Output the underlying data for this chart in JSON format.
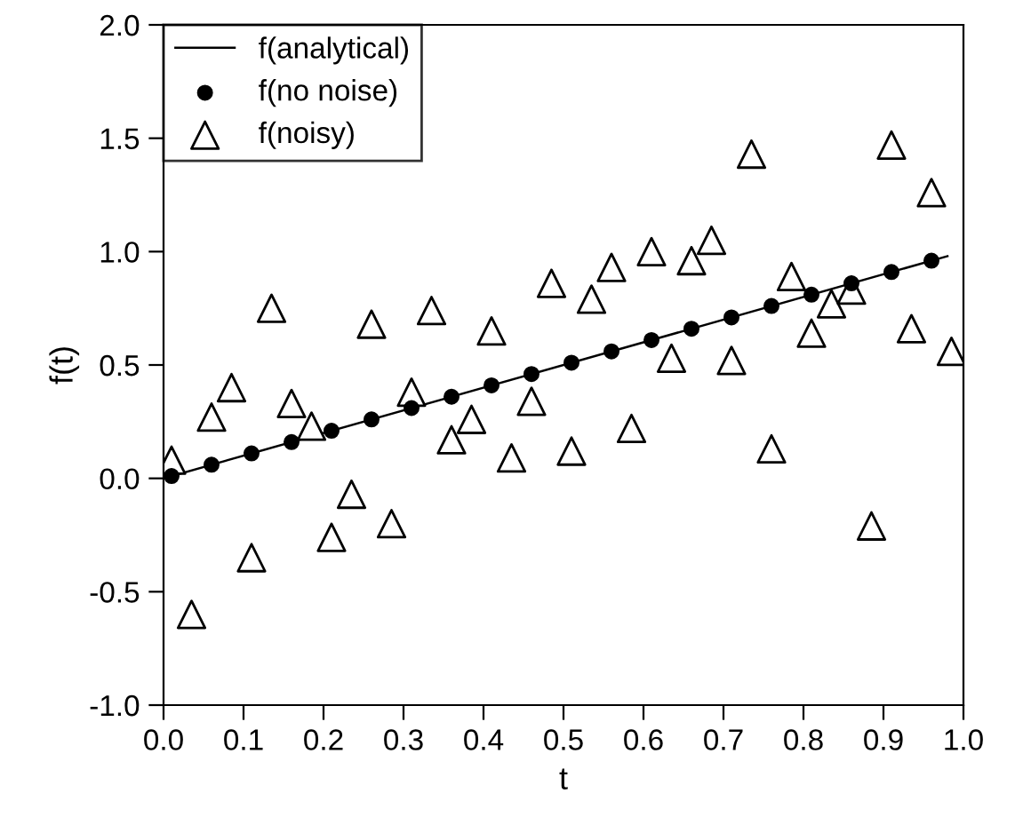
{
  "chart_data": {
    "type": "scatter",
    "xlabel": "t",
    "ylabel": "f(t)",
    "xlim": [
      0,
      1
    ],
    "ylim": [
      -1,
      2
    ],
    "xticks": [
      {
        "value": 0,
        "label": "0.0"
      },
      0.1,
      0.2,
      0.3,
      0.4,
      0.5,
      0.6,
      0.7,
      0.8,
      0.9,
      {
        "value": 1,
        "label": "1.0"
      }
    ],
    "yticks": [
      {
        "value": -1,
        "label": "-1.0"
      },
      -0.5,
      {
        "value": 0,
        "label": "0.0"
      },
      0.5,
      {
        "value": 1,
        "label": "1.0"
      },
      1.5,
      {
        "value": 2,
        "label": "2.0"
      }
    ],
    "legend": "top left",
    "grid": false,
    "series": [
      {
        "name": "f(analytical)",
        "type": "line",
        "color": "#000000",
        "marker": "none",
        "x": [
          0.01,
          0.98
        ],
        "values": [
          0.01,
          0.98
        ]
      },
      {
        "name": "f(no noise)",
        "color": "#000000",
        "marker": "circle",
        "x": [
          0.01,
          0.06,
          0.11,
          0.16,
          0.21,
          0.26,
          0.31,
          0.36,
          0.41,
          0.46,
          0.51,
          0.56,
          0.61,
          0.66,
          0.71,
          0.76,
          0.81,
          0.86,
          0.91,
          0.96
        ],
        "values": [
          0.01,
          0.06,
          0.11,
          0.16,
          0.21,
          0.26,
          0.31,
          0.36,
          0.41,
          0.46,
          0.51,
          0.56,
          0.61,
          0.66,
          0.71,
          0.76,
          0.81,
          0.86,
          0.91,
          0.96
        ]
      },
      {
        "name": "f(noisy)",
        "color": "#000000",
        "marker": "triangle",
        "x": [
          0.01,
          0.035,
          0.06,
          0.085,
          0.11,
          0.135,
          0.16,
          0.185,
          0.21,
          0.235,
          0.26,
          0.285,
          0.31,
          0.335,
          0.36,
          0.385,
          0.41,
          0.435,
          0.46,
          0.485,
          0.51,
          0.535,
          0.56,
          0.585,
          0.61,
          0.635,
          0.66,
          0.685,
          0.71,
          0.735,
          0.76,
          0.785,
          0.81,
          0.835,
          0.86,
          0.885,
          0.91,
          0.935,
          0.96,
          0.985
        ],
        "values": [
          0.08,
          -0.6,
          0.27,
          0.4,
          -0.35,
          0.75,
          0.33,
          0.23,
          -0.26,
          -0.07,
          0.68,
          -0.2,
          0.38,
          0.74,
          0.17,
          0.26,
          0.65,
          0.09,
          0.34,
          0.86,
          0.12,
          0.79,
          0.93,
          0.22,
          1.0,
          0.53,
          0.96,
          1.05,
          0.52,
          1.43,
          0.13,
          0.89,
          0.64,
          0.77,
          0.83,
          -0.21,
          1.47,
          0.66,
          1.26,
          0.56
        ]
      }
    ]
  }
}
